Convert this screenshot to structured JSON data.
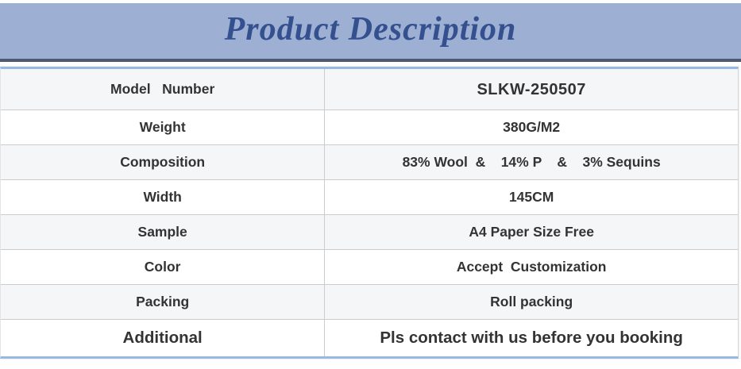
{
  "header": {
    "title": "Product Description"
  },
  "table": {
    "rows": [
      {
        "label": "Model   Number",
        "value": "SLKW-250507"
      },
      {
        "label": "Weight",
        "value": "380G/M2"
      },
      {
        "label": "Composition",
        "value": "83% Wool  &    14% P    &    3% Sequins"
      },
      {
        "label": "Width",
        "value": "145CM"
      },
      {
        "label": "Sample",
        "value": "A4 Paper Size Free"
      },
      {
        "label": "Color",
        "value": "Accept  Customization"
      },
      {
        "label": "Packing",
        "value": "Roll packing"
      },
      {
        "label": "Additional",
        "value": "Pls contact with us before you booking"
      }
    ]
  },
  "colors": {
    "banner_background": "#9dafd3",
    "banner_text": "#34508e",
    "banner_border": "#4d5a70",
    "table_accent_line": "#98b9e2",
    "row_stripe": "#f5f6f8",
    "cell_border": "#c9cbcd",
    "cell_text": "#333333"
  }
}
